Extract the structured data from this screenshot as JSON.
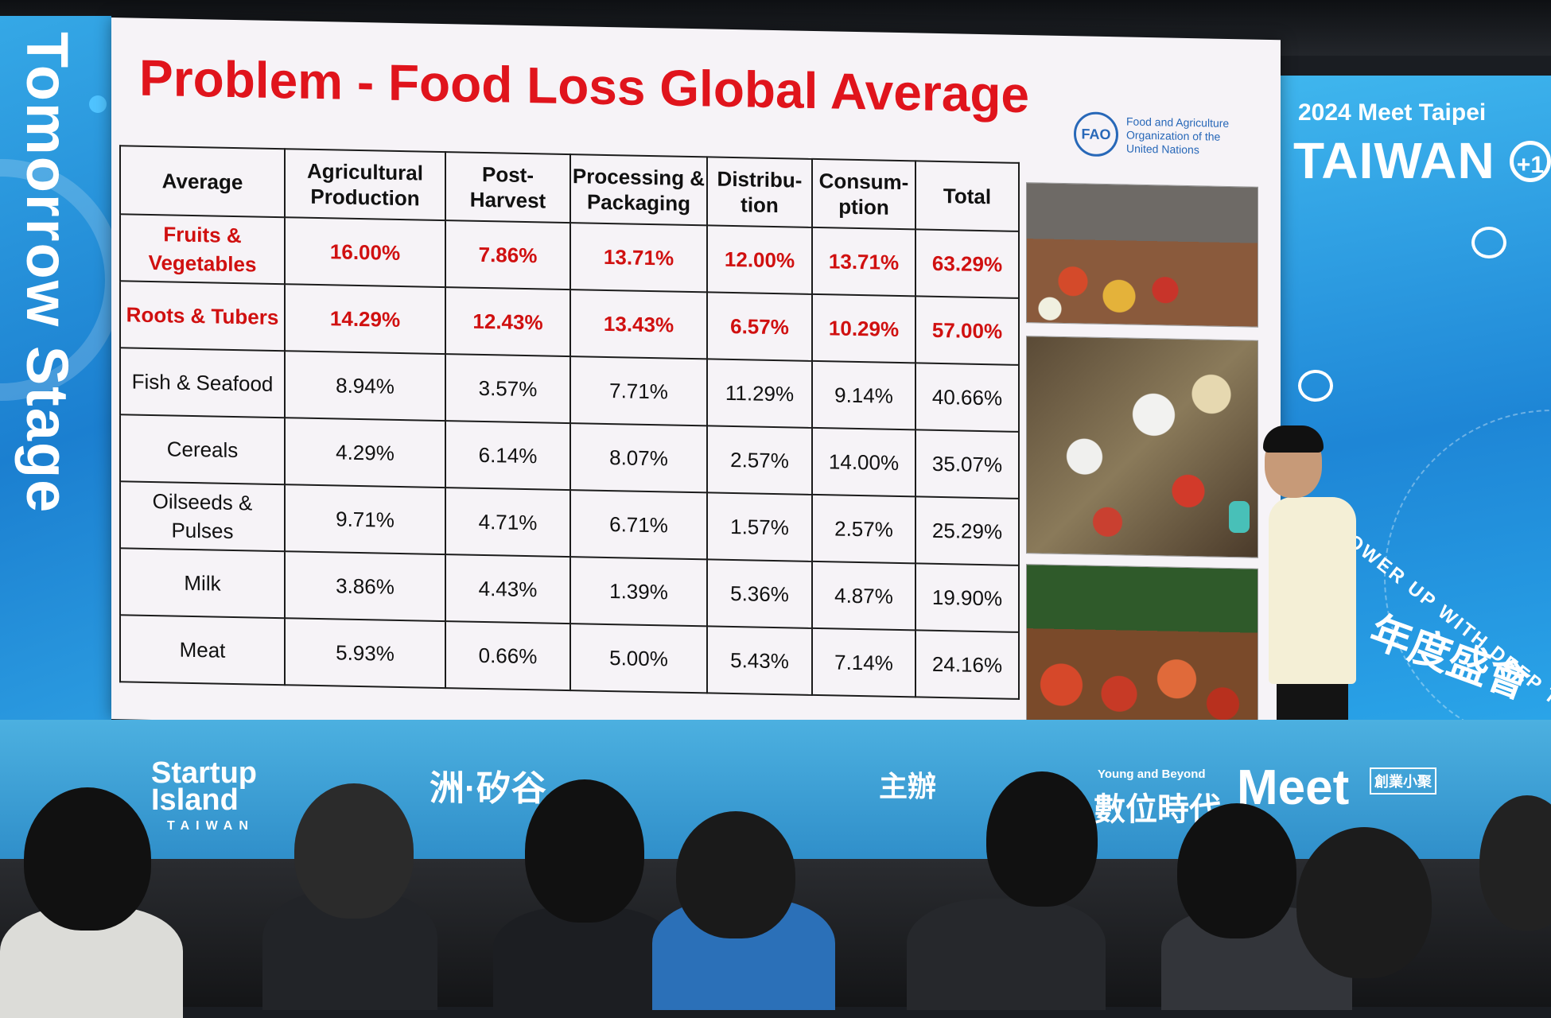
{
  "slide": {
    "title": "Problem - Food Loss Global Average",
    "source": {
      "logo_text": "FAO",
      "org_name": "Food and Agriculture Organization of the United Nations"
    },
    "table": {
      "headers": [
        "Average",
        "Agricultural Production",
        "Post-Harvest",
        "Processing & Packaging",
        "Distribu-tion",
        "Consum-ption",
        "Total"
      ],
      "rows": [
        {
          "label": "Fruits & Vegetables",
          "values": [
            "16.00%",
            "7.86%",
            "13.71%",
            "12.00%",
            "13.71%",
            "63.29%"
          ],
          "highlight": true
        },
        {
          "label": "Roots & Tubers",
          "values": [
            "14.29%",
            "12.43%",
            "13.43%",
            "6.57%",
            "10.29%",
            "57.00%"
          ],
          "highlight": true
        },
        {
          "label": "Fish & Seafood",
          "values": [
            "8.94%",
            "3.57%",
            "7.71%",
            "11.29%",
            "9.14%",
            "40.66%"
          ],
          "highlight": false
        },
        {
          "label": "Cereals",
          "values": [
            "4.29%",
            "6.14%",
            "8.07%",
            "2.57%",
            "14.00%",
            "35.07%"
          ],
          "highlight": false
        },
        {
          "label": "Oilseeds & Pulses",
          "values": [
            "9.71%",
            "4.71%",
            "6.71%",
            "1.57%",
            "2.57%",
            "25.29%"
          ],
          "highlight": false
        },
        {
          "label": "Milk",
          "values": [
            "3.86%",
            "4.43%",
            "1.39%",
            "5.36%",
            "4.87%",
            "19.90%"
          ],
          "highlight": false
        },
        {
          "label": "Meat",
          "values": [
            "5.93%",
            "0.66%",
            "5.00%",
            "5.43%",
            "7.14%",
            "24.16%"
          ],
          "highlight": false
        }
      ]
    }
  },
  "left_banner": {
    "text": "Tomorrow Stage"
  },
  "right_banner": {
    "event": "2024 Meet Taipei",
    "brand": "TAIWAN",
    "plus": "+1",
    "tagline": "POWER UP WITH DEEP TECH",
    "chinese": "年度盛會"
  },
  "stage_banner": {
    "sponsor1": "Startup Island",
    "sponsor1_sub": "TAIWAN",
    "sponsor2": "洲·矽谷",
    "sponsor3": "主辦",
    "sponsor4": "Young and Beyond",
    "sponsor4_sub": "數位時代",
    "sponsor5": "Meet",
    "sponsor5_sub": "創業小聚"
  },
  "colors": {
    "title_red": "#e0141c",
    "highlight_red": "#d01010",
    "banner_blue": "#1e86d6",
    "slide_bg": "#f6f3f7"
  }
}
